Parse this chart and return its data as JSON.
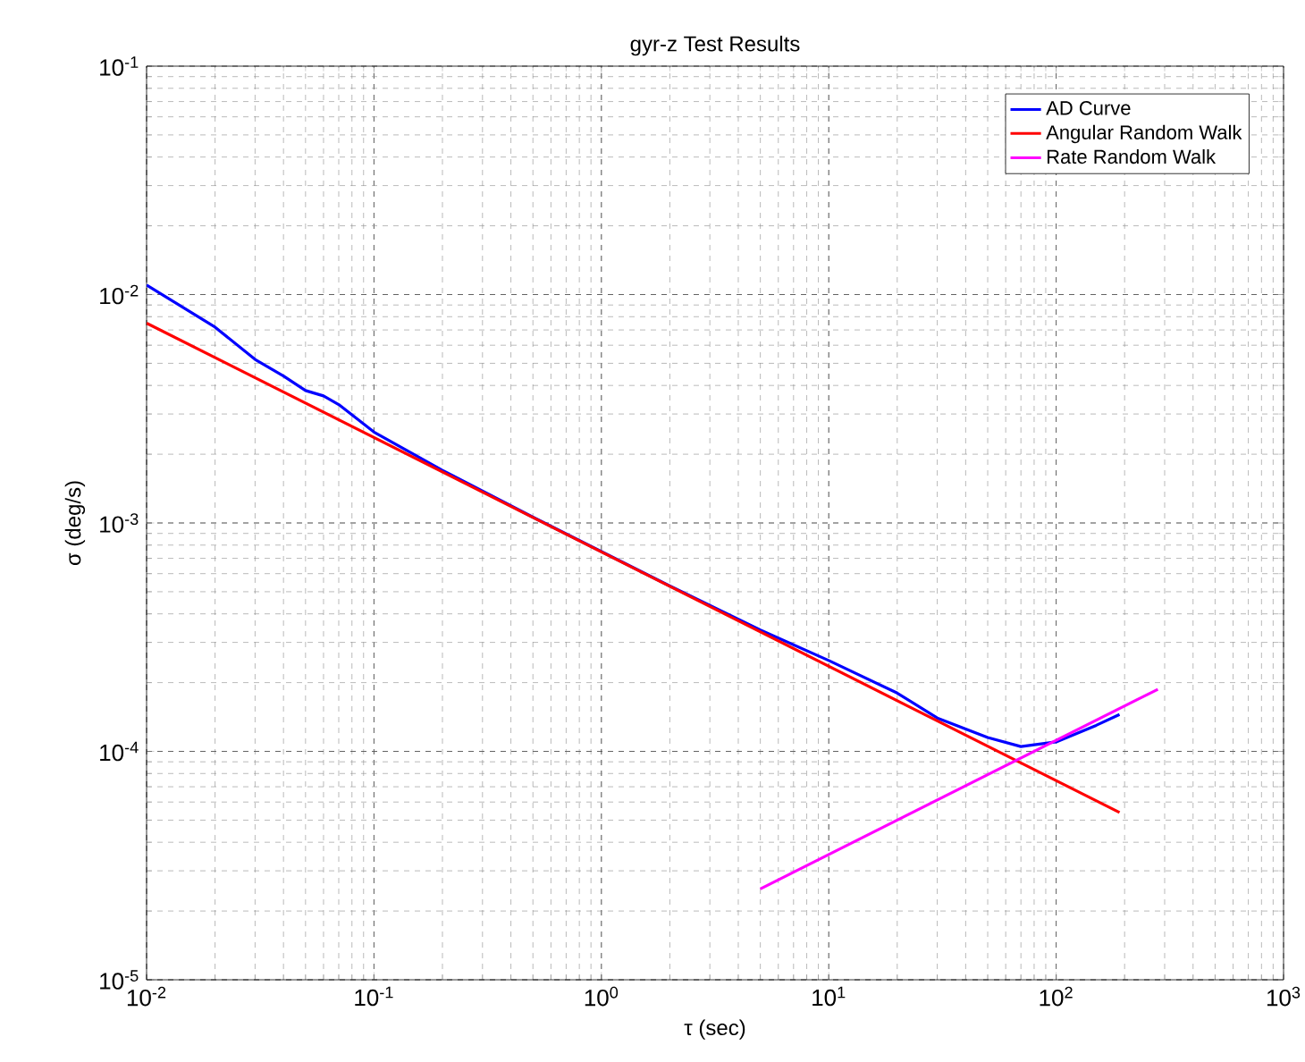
{
  "chart_data": {
    "type": "line",
    "title": "gyr-z Test Results",
    "xlabel": "τ (sec)",
    "ylabel": "σ (deg/s)",
    "log": "xy",
    "grid": true,
    "legend": "top right",
    "xlim": [
      0.01,
      1000
    ],
    "ylim": [
      1e-05,
      0.1
    ],
    "xticks": [
      {
        "value": 0.01,
        "label": "10$^{-2}$"
      },
      {
        "value": 0.1,
        "label": "10$^{-1}$"
      },
      {
        "value": 1,
        "label": "10$^{0}$"
      },
      {
        "value": 10,
        "label": "10$^{1}$"
      },
      {
        "value": 100,
        "label": "10$^{2}$"
      },
      {
        "value": 1000,
        "label": "10$^{3}$"
      }
    ],
    "yticks": [
      {
        "value": 1e-05,
        "label": "10$^{-5}$"
      },
      {
        "value": 0.0001,
        "label": "10$^{-4}$"
      },
      {
        "value": 0.001,
        "label": "10$^{-3}$"
      },
      {
        "value": 0.01,
        "label": "10$^{-2}$"
      },
      {
        "value": 0.1,
        "label": "10$^{-1}$"
      }
    ],
    "series": [
      {
        "name": "AD Curve",
        "color": "#0000ff",
        "x": [
          0.01,
          0.02,
          0.03,
          0.04,
          0.05,
          0.06,
          0.07,
          0.1,
          0.2,
          0.5,
          1,
          2,
          5,
          10,
          20,
          30,
          50,
          70,
          100,
          150,
          190
        ],
        "values": [
          0.011,
          0.0072,
          0.0052,
          0.0044,
          0.0038,
          0.0036,
          0.0033,
          0.0025,
          0.0017,
          0.00106,
          0.00075,
          0.00053,
          0.00034,
          0.00025,
          0.00018,
          0.00014,
          0.000115,
          0.000105,
          0.00011,
          0.00013,
          0.000145
        ]
      },
      {
        "name": "Angular Random Walk",
        "color": "#ff0000",
        "x": [
          0.01,
          190
        ],
        "values": [
          0.0075,
          5.4e-05
        ]
      },
      {
        "name": "Rate Random Walk",
        "color": "#ff00ff",
        "x": [
          5,
          280
        ],
        "values": [
          2.5e-05,
          0.000187
        ]
      }
    ]
  }
}
